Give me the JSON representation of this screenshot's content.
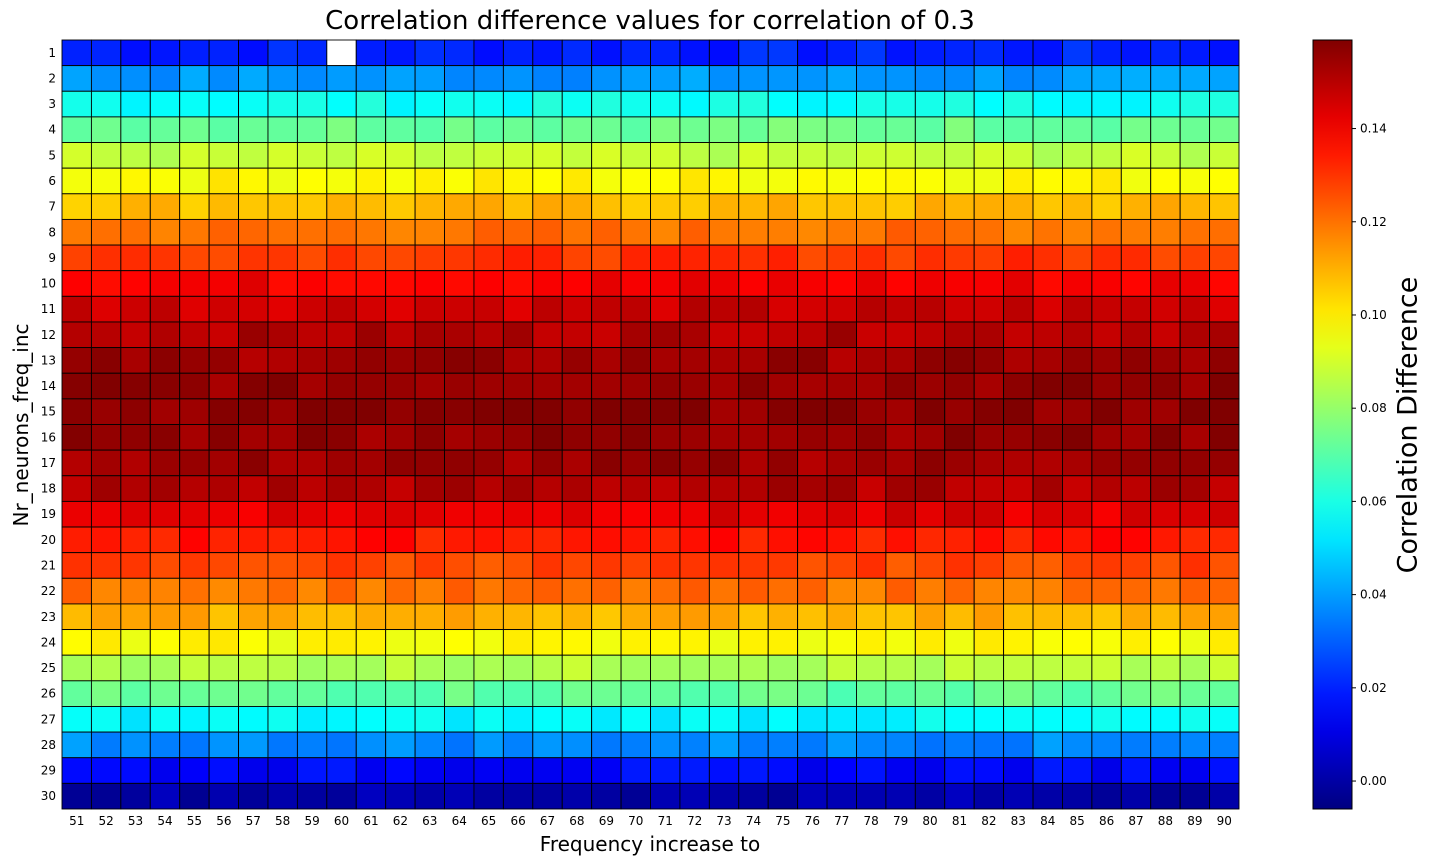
{
  "chart_data": {
    "type": "heatmap",
    "title": "Correlation difference values for correlation of 0.3",
    "xlabel": "Frequency increase to",
    "ylabel": "Nr_neurons_freq_inc",
    "x": [
      51,
      52,
      53,
      54,
      55,
      56,
      57,
      58,
      59,
      60,
      61,
      62,
      63,
      64,
      65,
      66,
      67,
      68,
      69,
      70,
      71,
      72,
      73,
      74,
      75,
      76,
      77,
      78,
      79,
      80,
      81,
      82,
      83,
      84,
      85,
      86,
      87,
      88,
      89,
      90
    ],
    "y": [
      1,
      2,
      3,
      4,
      5,
      6,
      7,
      8,
      9,
      10,
      11,
      12,
      13,
      14,
      15,
      16,
      17,
      18,
      19,
      20,
      21,
      22,
      23,
      24,
      25,
      26,
      27,
      28,
      29,
      30
    ],
    "row_mean_values": [
      0.02,
      0.039,
      0.058,
      0.074,
      0.087,
      0.098,
      0.108,
      0.12,
      0.13,
      0.14,
      0.147,
      0.151,
      0.154,
      0.156,
      0.157,
      0.156,
      0.154,
      0.151,
      0.143,
      0.135,
      0.127,
      0.12,
      0.11,
      0.097,
      0.085,
      0.072,
      0.055,
      0.037,
      0.015,
      0.001
    ],
    "missing_cells": [
      {
        "x": 60,
        "y": 1
      }
    ],
    "colorbar": {
      "label": "Correlation Difference",
      "range": [
        -0.006,
        0.159
      ],
      "ticks": [
        0.0,
        0.02,
        0.04,
        0.06,
        0.08,
        0.1,
        0.12,
        0.14
      ],
      "tick_labels": [
        "0.00",
        "0.02",
        "0.04",
        "0.06",
        "0.08",
        "0.10",
        "0.12",
        "0.14"
      ],
      "colormap": "jet"
    }
  }
}
